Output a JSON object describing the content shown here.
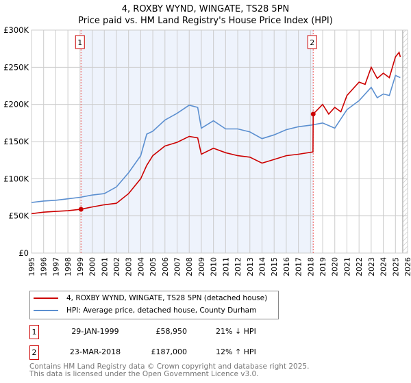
{
  "title_line1": "4, ROXBY WYND, WINGATE, TS28 5PN",
  "title_line2": "Price paid vs. HM Land Registry's House Price Index (HPI)",
  "chart_data": {
    "type": "line",
    "xlim": [
      1995,
      2026
    ],
    "ylim": [
      0,
      300000
    ],
    "x_ticks": [
      "1995",
      "1996",
      "1997",
      "1998",
      "1999",
      "2000",
      "2001",
      "2002",
      "2003",
      "2004",
      "2005",
      "2006",
      "2007",
      "2008",
      "2009",
      "2010",
      "2011",
      "2012",
      "2013",
      "2014",
      "2015",
      "2016",
      "2017",
      "2018",
      "2019",
      "2020",
      "2021",
      "2022",
      "2023",
      "2024",
      "2025",
      "2026"
    ],
    "y_ticks": [
      {
        "v": 0,
        "label": "£0"
      },
      {
        "v": 50000,
        "label": "£50K"
      },
      {
        "v": 100000,
        "label": "£100K"
      },
      {
        "v": 150000,
        "label": "£150K"
      },
      {
        "v": 200000,
        "label": "£200K"
      },
      {
        "v": 250000,
        "label": "£250K"
      },
      {
        "v": 300000,
        "label": "£300K"
      }
    ],
    "grid": true,
    "series": [
      {
        "name": "4, ROXBY WYND, WINGATE, TS28 5PN (detached house)",
        "color": "#cc0000",
        "x": [
          1995,
          1996,
          1997,
          1998,
          1999.08,
          2000,
          2001,
          2002,
          2003,
          2004,
          2004.5,
          2005,
          2006,
          2007,
          2008,
          2008.7,
          2009,
          2010,
          2011,
          2012,
          2013,
          2014,
          2015,
          2016,
          2017,
          2018.2,
          2018.22,
          2019,
          2019.5,
          2020,
          2020.5,
          2021,
          2022,
          2022.5,
          2023,
          2023.5,
          2024,
          2024.5,
          2025,
          2025.3,
          2025.4
        ],
        "y": [
          53000,
          55000,
          56000,
          57000,
          58950,
          62000,
          65000,
          67000,
          80000,
          100000,
          118000,
          131000,
          144000,
          149000,
          157000,
          155000,
          133000,
          141000,
          135000,
          131000,
          129000,
          121000,
          126000,
          131000,
          133000,
          136000,
          187000,
          200000,
          187000,
          196000,
          190000,
          212000,
          230000,
          227000,
          250000,
          235000,
          242000,
          236000,
          264000,
          270000,
          264000
        ]
      },
      {
        "name": "HPI: Average price, detached house, County Durham",
        "color": "#5b8fd0",
        "x": [
          1995,
          1996,
          1997,
          1998,
          1999,
          2000,
          2001,
          2002,
          2003,
          2004,
          2004.5,
          2005,
          2006,
          2007,
          2008,
          2008.7,
          2009,
          2010,
          2011,
          2012,
          2013,
          2014,
          2015,
          2016,
          2017,
          2018,
          2019,
          2020,
          2021,
          2022,
          2023,
          2023.5,
          2024,
          2024.5,
          2025,
          2025.4
        ],
        "y": [
          68000,
          70000,
          71000,
          73000,
          75000,
          78000,
          80000,
          89000,
          108000,
          131000,
          160000,
          164000,
          179000,
          188000,
          199000,
          196000,
          168000,
          178000,
          167000,
          167000,
          163000,
          154000,
          159000,
          166000,
          170000,
          172000,
          175000,
          168000,
          193000,
          205000,
          223000,
          209000,
          214000,
          212000,
          239000,
          236000
        ]
      }
    ],
    "shaded_range": [
      1999.08,
      2018.22
    ],
    "hatched_from": 2025.6,
    "annotations": [
      {
        "label": "1",
        "x": 1999.08,
        "y": 58950
      },
      {
        "label": "2",
        "x": 2018.22,
        "y": 187000
      }
    ]
  },
  "legend": {
    "red": "4, ROXBY WYND, WINGATE, TS28 5PN (detached house)",
    "blue": "HPI: Average price, detached house, County Durham"
  },
  "transactions": [
    {
      "num": "1",
      "date": "29-JAN-1999",
      "price": "£58,950",
      "hpi": "21% ↓ HPI"
    },
    {
      "num": "2",
      "date": "23-MAR-2018",
      "price": "£187,000",
      "hpi": "12% ↑ HPI"
    }
  ],
  "footer": {
    "line1": "Contains HM Land Registry data © Crown copyright and database right 2025.",
    "line2": "This data is licensed under the Open Government Licence v3.0."
  }
}
